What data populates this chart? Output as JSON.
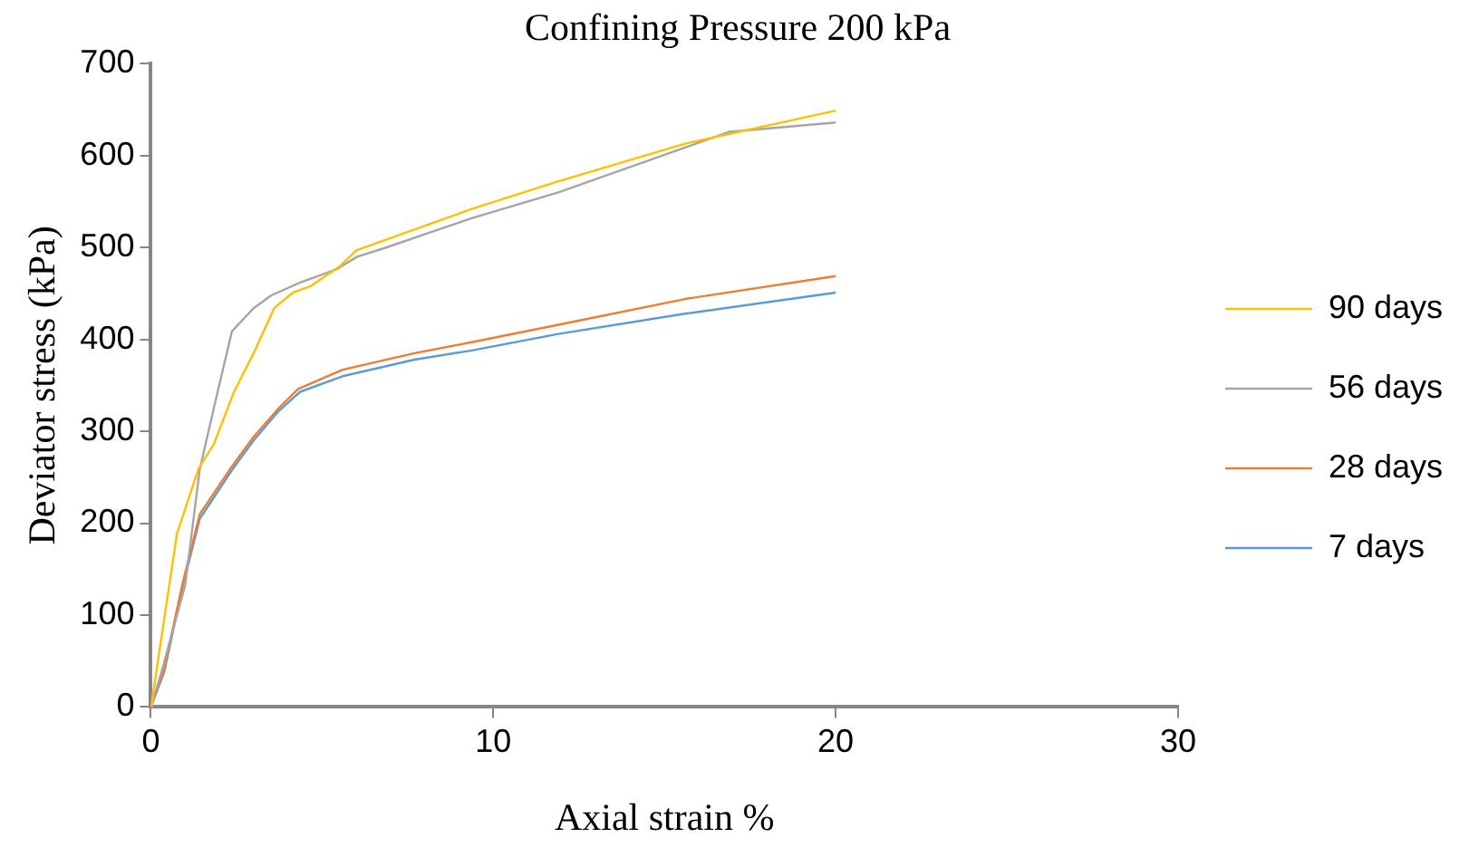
{
  "chart_data": {
    "type": "line",
    "title": "Confining Pressure 200 kPa",
    "xlabel": "Axial strain %",
    "ylabel": "Deviator stress (kPa)",
    "xlim": [
      0,
      30
    ],
    "xticks": [
      0,
      10,
      20,
      30
    ],
    "ylim": [
      0,
      700
    ],
    "yticks": [
      0,
      100,
      200,
      300,
      400,
      500,
      600,
      700
    ],
    "grid": false,
    "legend": "right",
    "marker": "none",
    "line_style": "solid",
    "series": [
      {
        "name": "90 days",
        "color": "#ffc000",
        "x": [
          0,
          0.03,
          0.76,
          1.39,
          1.85,
          2.43,
          3.0,
          3.6,
          4.15,
          4.67,
          5.5,
          6.0,
          9.37,
          11.9,
          15.6,
          20
        ],
        "values": [
          0,
          6,
          188,
          259,
          287,
          343,
          385,
          434,
          451,
          458,
          479,
          497,
          542,
          572,
          613,
          649
        ]
      },
      {
        "name": "56 days",
        "color": "#a5a5a5",
        "x": [
          0,
          0.28,
          1.0,
          1.43,
          1.95,
          2.37,
          3.0,
          3.52,
          4.36,
          5.4,
          6.03,
          6.87,
          9.37,
          11.9,
          16.9,
          20
        ],
        "values": [
          0,
          34,
          132,
          259,
          343,
          409,
          434,
          448,
          462,
          476,
          490,
          500,
          532,
          560,
          626,
          636
        ]
      },
      {
        "name": "28 days",
        "color": "#ed7d31",
        "x": [
          0,
          0.39,
          0.91,
          1.43,
          2.37,
          3.0,
          3.73,
          4.3,
          5.6,
          7.7,
          9.37,
          11.9,
          15.6,
          20
        ],
        "values": [
          0,
          41,
          132,
          210,
          262,
          294,
          325,
          346,
          367,
          385,
          397,
          416,
          444,
          469
        ]
      },
      {
        "name": "7 days",
        "color": "#5b9bd5",
        "x": [
          0,
          0.39,
          0.91,
          1.43,
          2.37,
          3.0,
          3.73,
          4.36,
          5.6,
          7.7,
          9.37,
          11.9,
          15.6,
          20
        ],
        "values": [
          0,
          38,
          128,
          205,
          258,
          290,
          322,
          343,
          360,
          378,
          388,
          406,
          428,
          451
        ]
      }
    ]
  }
}
